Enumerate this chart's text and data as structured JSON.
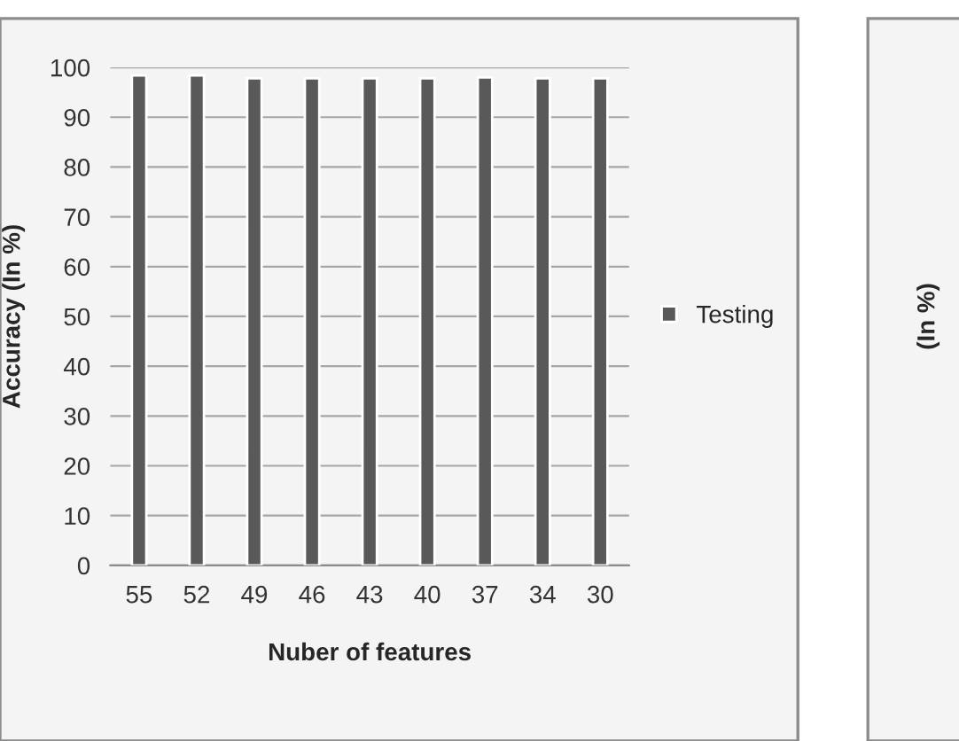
{
  "chart_data": [
    {
      "type": "bar",
      "xlabel": "Nuber of features",
      "ylabel": "Accuracy (In %)",
      "categories": [
        "55",
        "52",
        "49",
        "46",
        "43",
        "40",
        "37",
        "34",
        "30"
      ],
      "series": [
        {
          "name": "Testing",
          "color": "#595959",
          "values": [
            98.4,
            98.4,
            97.8,
            97.8,
            97.8,
            97.8,
            98.0,
            97.8,
            97.8
          ]
        }
      ],
      "ylim": [
        0,
        100
      ],
      "yticks": [
        0,
        10,
        20,
        30,
        40,
        50,
        60,
        70,
        80,
        90,
        100
      ],
      "grid": "y",
      "legend": "right"
    },
    {
      "type": "other",
      "ylabel": "(In %)"
    }
  ]
}
